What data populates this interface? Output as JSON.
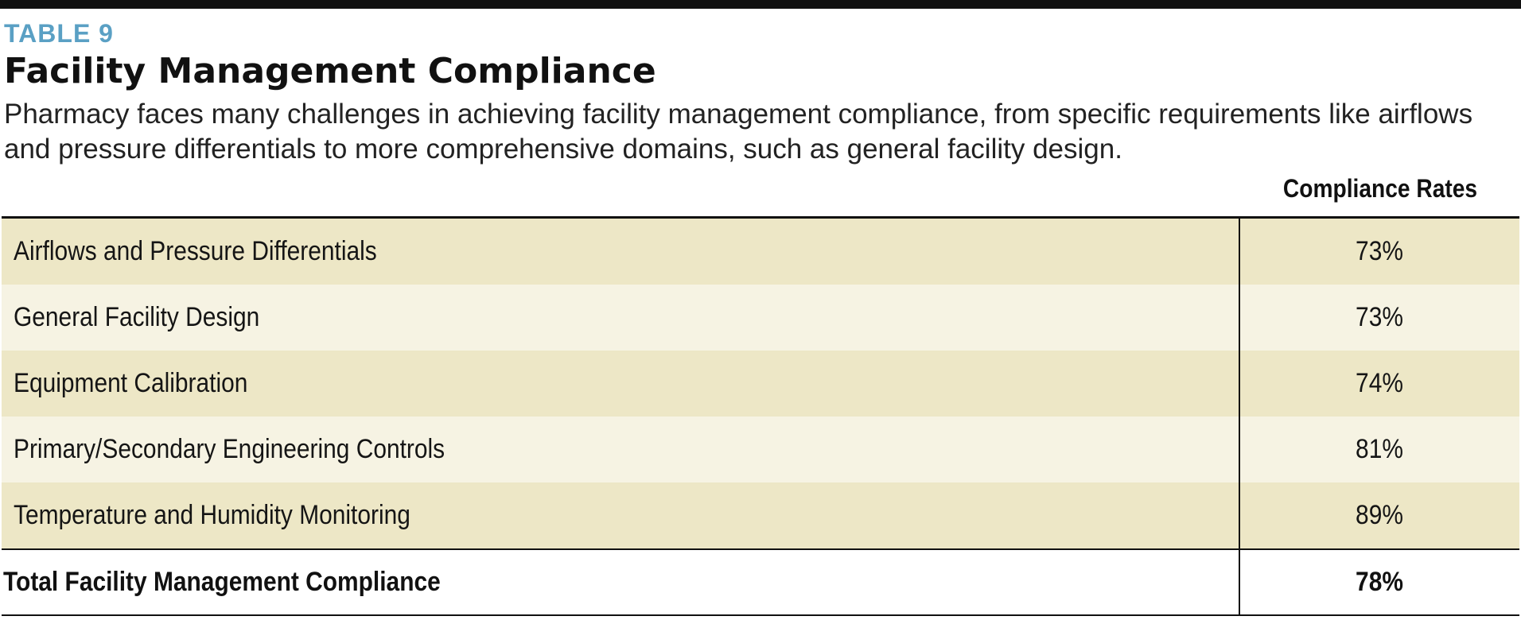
{
  "header": {
    "table_label": "TABLE 9",
    "title": "Facility Management Compliance",
    "description": "Pharmacy faces many challenges in achieving facility management compliance, from specific requirements like airflows and pressure differentials to more comprehensive domains, such as general facility design."
  },
  "table": {
    "column_header": "Compliance Rates",
    "rows": [
      {
        "label": "Airflows and Pressure Differentials",
        "value": "73%"
      },
      {
        "label": "General Facility Design",
        "value": "73%"
      },
      {
        "label": "Equipment Calibration",
        "value": "74%"
      },
      {
        "label": "Primary/Secondary Engineering Controls",
        "value": "81%"
      },
      {
        "label": "Temperature and Humidity Monitoring",
        "value": "89%"
      }
    ],
    "total": {
      "label": "Total Facility Management Compliance",
      "value": "78%"
    }
  },
  "colors": {
    "label_accent": "#5aa0c4",
    "row_odd": "#ede7c6",
    "row_even": "#f6f3e3",
    "rule": "#111111"
  }
}
